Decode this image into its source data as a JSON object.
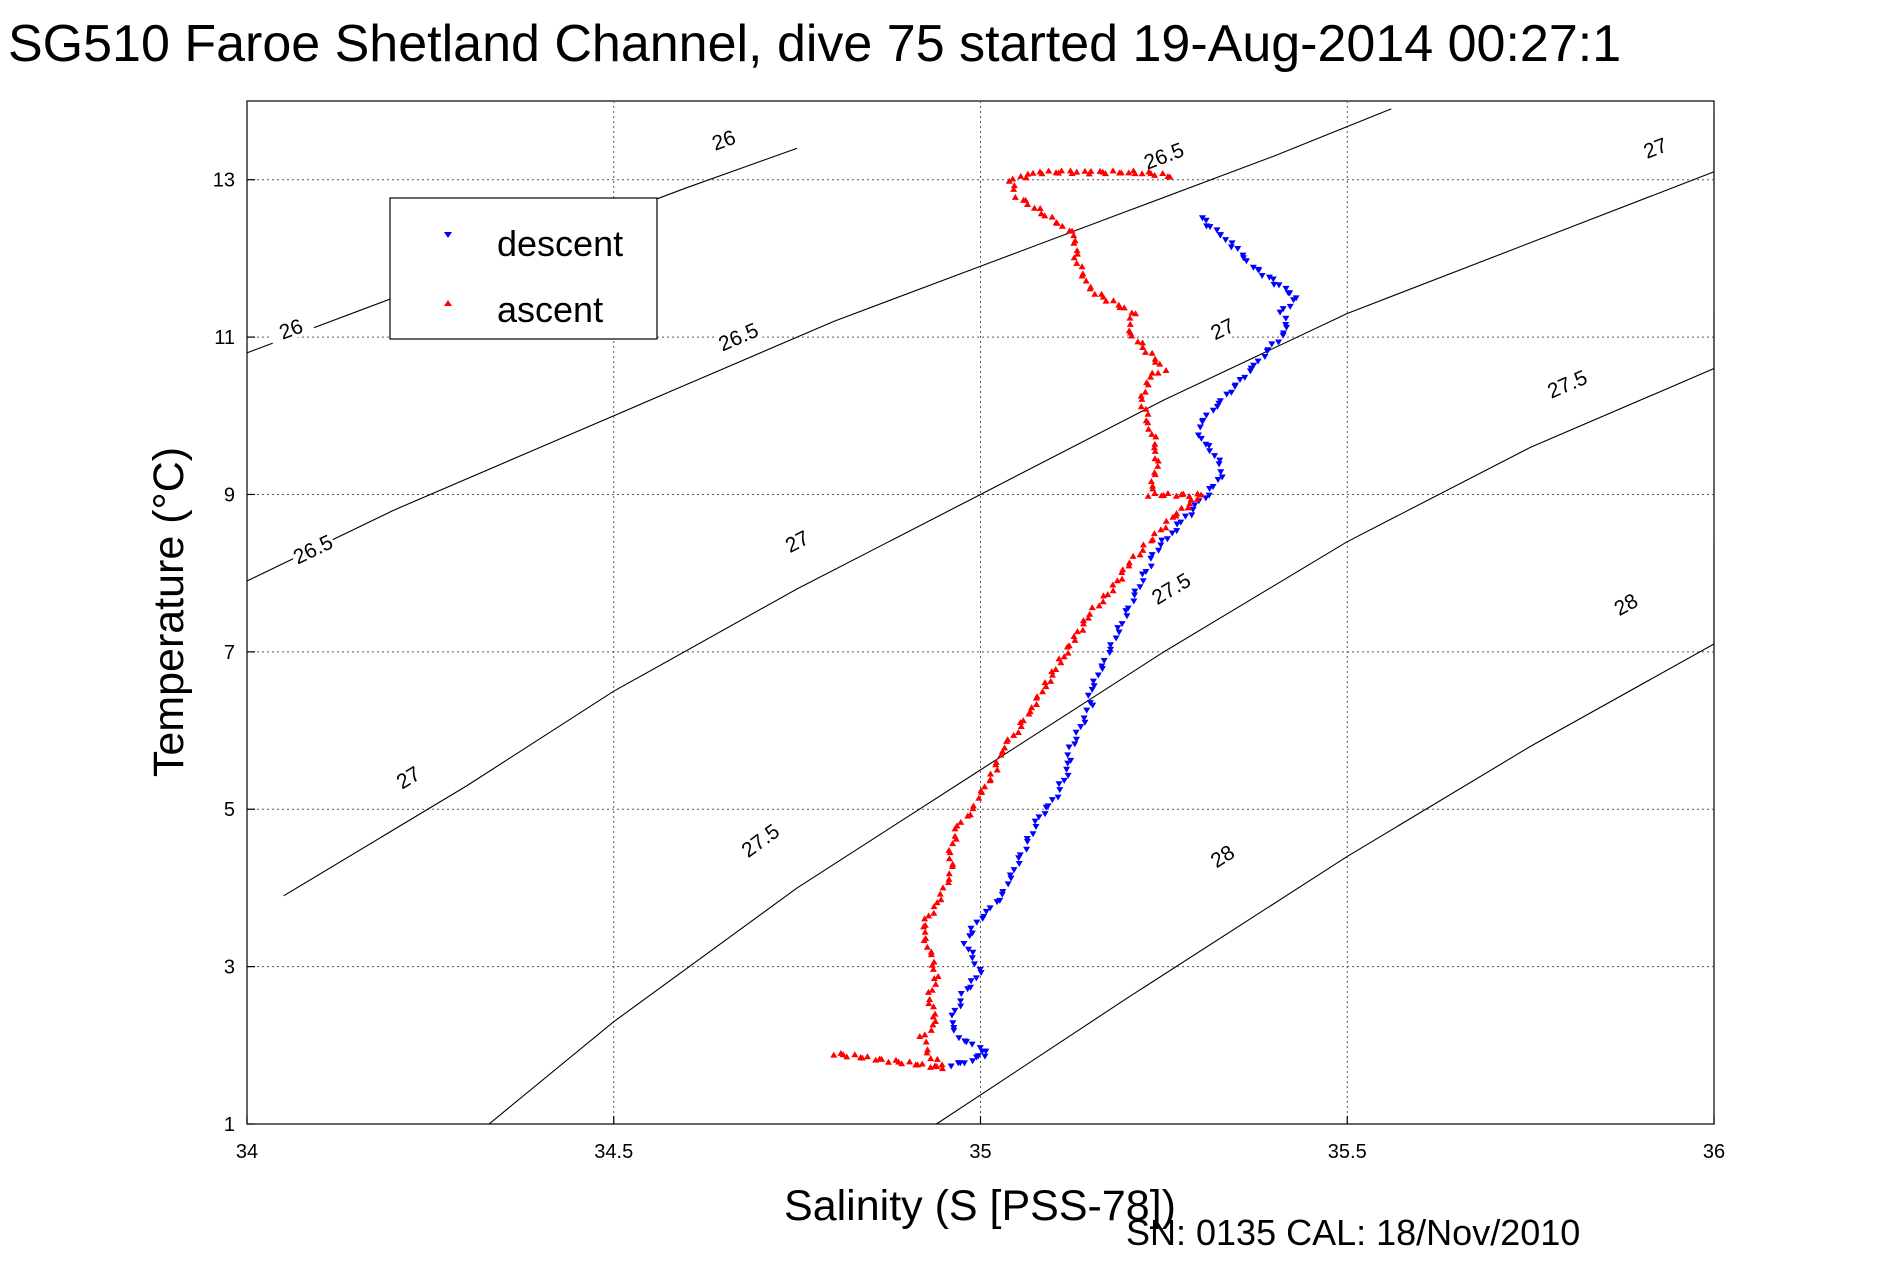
{
  "chart_data": {
    "type": "scatter",
    "title": "SG510 Faroe Shetland Channel, dive 75 started 19-Aug-2014 00:27:1",
    "xlabel": "Salinity (S [PSS-78])",
    "ylabel": "Temperature (°C)",
    "xlim": [
      34,
      36
    ],
    "ylim": [
      1,
      14
    ],
    "xticks": [
      "34",
      "34.5",
      "35",
      "35.5",
      "36"
    ],
    "yticks": [
      "1",
      "3",
      "5",
      "7",
      "9",
      "11",
      "13"
    ],
    "grid": true,
    "legend_position": "top-left",
    "contour_levels": [
      "26",
      "26.5",
      "27",
      "27.5",
      "28"
    ],
    "series": [
      {
        "name": "descent",
        "color": "#0000ff",
        "marker": "triangle-down",
        "points": [
          [
            34.96,
            1.75
          ],
          [
            34.98,
            1.78
          ],
          [
            35.0,
            1.85
          ],
          [
            35.01,
            1.9
          ],
          [
            34.99,
            2.0
          ],
          [
            34.97,
            2.1
          ],
          [
            34.96,
            2.3
          ],
          [
            34.97,
            2.5
          ],
          [
            34.98,
            2.7
          ],
          [
            35.0,
            2.9
          ],
          [
            34.99,
            3.1
          ],
          [
            34.98,
            3.3
          ],
          [
            34.99,
            3.5
          ],
          [
            35.01,
            3.7
          ],
          [
            35.03,
            3.9
          ],
          [
            35.04,
            4.1
          ],
          [
            35.05,
            4.3
          ],
          [
            35.06,
            4.5
          ],
          [
            35.07,
            4.7
          ],
          [
            35.08,
            4.9
          ],
          [
            35.1,
            5.1
          ],
          [
            35.11,
            5.3
          ],
          [
            35.12,
            5.5
          ],
          [
            35.12,
            5.7
          ],
          [
            35.13,
            5.9
          ],
          [
            35.14,
            6.1
          ],
          [
            35.15,
            6.3
          ],
          [
            35.15,
            6.5
          ],
          [
            35.16,
            6.7
          ],
          [
            35.17,
            6.9
          ],
          [
            35.18,
            7.1
          ],
          [
            35.19,
            7.3
          ],
          [
            35.2,
            7.5
          ],
          [
            35.21,
            7.7
          ],
          [
            35.22,
            7.9
          ],
          [
            35.23,
            8.1
          ],
          [
            35.24,
            8.3
          ],
          [
            35.26,
            8.5
          ],
          [
            35.28,
            8.7
          ],
          [
            35.3,
            8.9
          ],
          [
            35.32,
            9.1
          ],
          [
            35.33,
            9.3
          ],
          [
            35.32,
            9.5
          ],
          [
            35.3,
            9.7
          ],
          [
            35.3,
            9.9
          ],
          [
            35.32,
            10.1
          ],
          [
            35.34,
            10.3
          ],
          [
            35.36,
            10.5
          ],
          [
            35.38,
            10.7
          ],
          [
            35.4,
            10.9
          ],
          [
            35.42,
            11.1
          ],
          [
            35.41,
            11.3
          ],
          [
            35.43,
            11.5
          ],
          [
            35.37,
            11.9
          ],
          [
            35.34,
            12.2
          ],
          [
            35.3,
            12.5
          ]
        ]
      },
      {
        "name": "ascent",
        "color": "#ff0000",
        "marker": "triangle-up",
        "points": [
          [
            34.8,
            1.9
          ],
          [
            34.95,
            1.72
          ],
          [
            34.93,
            1.9
          ],
          [
            34.92,
            2.1
          ],
          [
            34.94,
            2.3
          ],
          [
            34.93,
            2.6
          ],
          [
            34.94,
            2.9
          ],
          [
            34.93,
            3.2
          ],
          [
            34.92,
            3.5
          ],
          [
            34.94,
            3.8
          ],
          [
            34.95,
            4.0
          ],
          [
            34.96,
            4.2
          ],
          [
            34.96,
            4.5
          ],
          [
            34.97,
            4.8
          ],
          [
            34.99,
            5.0
          ],
          [
            35.0,
            5.2
          ],
          [
            35.02,
            5.5
          ],
          [
            35.03,
            5.8
          ],
          [
            35.05,
            6.0
          ],
          [
            35.07,
            6.3
          ],
          [
            35.09,
            6.6
          ],
          [
            35.11,
            6.9
          ],
          [
            35.13,
            7.2
          ],
          [
            35.15,
            7.5
          ],
          [
            35.18,
            7.8
          ],
          [
            35.2,
            8.1
          ],
          [
            35.23,
            8.4
          ],
          [
            35.26,
            8.7
          ],
          [
            35.3,
            9.0
          ],
          [
            35.23,
            9.0
          ],
          [
            35.24,
            9.3
          ],
          [
            35.24,
            9.6
          ],
          [
            35.23,
            9.9
          ],
          [
            35.22,
            10.2
          ],
          [
            35.23,
            10.5
          ],
          [
            35.25,
            10.6
          ],
          [
            35.2,
            11.1
          ],
          [
            35.21,
            11.3
          ],
          [
            35.15,
            11.6
          ],
          [
            35.13,
            12.0
          ],
          [
            35.13,
            12.3
          ],
          [
            35.05,
            12.8
          ],
          [
            35.04,
            13.0
          ],
          [
            35.08,
            13.1
          ],
          [
            35.12,
            13.1
          ],
          [
            35.16,
            13.1
          ],
          [
            35.2,
            13.1
          ],
          [
            35.22,
            13.1
          ],
          [
            35.26,
            13.05
          ]
        ]
      }
    ],
    "isopycnals": [
      {
        "level": "26",
        "points": [
          [
            34.0,
            10.8
          ],
          [
            34.2,
            11.5
          ],
          [
            34.4,
            12.2
          ],
          [
            34.6,
            12.9
          ],
          [
            34.75,
            13.4
          ]
        ],
        "labels": [
          [
            34.06,
            11.1
          ],
          [
            34.65,
            13.5
          ]
        ]
      },
      {
        "level": "26.5",
        "points": [
          [
            34.0,
            7.9
          ],
          [
            34.2,
            8.8
          ],
          [
            34.4,
            9.6
          ],
          [
            34.6,
            10.4
          ],
          [
            34.8,
            11.2
          ],
          [
            35.0,
            11.9
          ],
          [
            35.2,
            12.6
          ],
          [
            35.4,
            13.3
          ],
          [
            35.56,
            13.9
          ]
        ],
        "labels": [
          [
            34.09,
            8.3
          ],
          [
            34.67,
            11.0
          ],
          [
            35.25,
            13.3
          ]
        ]
      },
      {
        "level": "27",
        "points": [
          [
            34.05,
            3.9
          ],
          [
            34.3,
            5.3
          ],
          [
            34.5,
            6.5
          ],
          [
            34.75,
            7.8
          ],
          [
            35.0,
            9.0
          ],
          [
            35.25,
            10.2
          ],
          [
            35.5,
            11.3
          ],
          [
            35.75,
            12.2
          ],
          [
            36.0,
            13.1
          ],
          [
            36.0,
            13.8
          ]
        ],
        "labels": [
          [
            34.22,
            5.4
          ],
          [
            34.75,
            8.4
          ],
          [
            35.33,
            11.1
          ],
          [
            35.92,
            13.4
          ]
        ]
      },
      {
        "level": "27.5",
        "points": [
          [
            34.33,
            1.0
          ],
          [
            34.5,
            2.3
          ],
          [
            34.75,
            4.0
          ],
          [
            35.0,
            5.5
          ],
          [
            35.25,
            7.0
          ],
          [
            35.5,
            8.4
          ],
          [
            35.75,
            9.6
          ],
          [
            36.0,
            10.6
          ],
          [
            36.0,
            11.3
          ]
        ],
        "labels": [
          [
            34.7,
            4.6
          ],
          [
            35.26,
            7.8
          ],
          [
            35.8,
            10.4
          ]
        ]
      },
      {
        "level": "28",
        "points": [
          [
            34.94,
            1.0
          ],
          [
            35.2,
            2.6
          ],
          [
            35.5,
            4.4
          ],
          [
            35.75,
            5.8
          ],
          [
            36.0,
            7.1
          ],
          [
            36.0,
            8.4
          ]
        ],
        "labels": [
          [
            35.33,
            4.4
          ],
          [
            35.88,
            7.6
          ]
        ]
      }
    ]
  },
  "footer": "SN: 0135  CAL: 18/Nov/2010"
}
